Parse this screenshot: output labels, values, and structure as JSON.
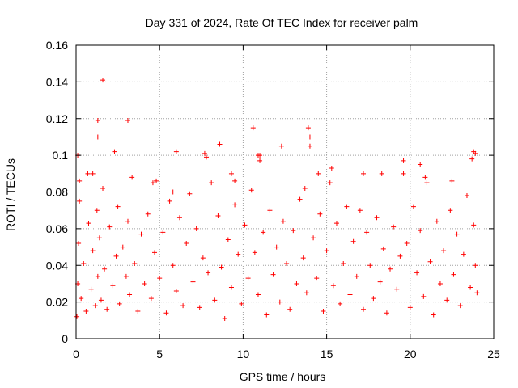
{
  "chart_data": {
    "type": "scatter",
    "title": "Day 331 of 2024, Rate Of TEC Index for receiver palm",
    "xlabel": "GPS time / hours",
    "ylabel": "ROTI / TECUs",
    "xlim": [
      0,
      25
    ],
    "ylim": [
      0,
      0.16
    ],
    "xticks": [
      0,
      5,
      10,
      15,
      20,
      25
    ],
    "xtick_labels": [
      "0",
      "5",
      "10",
      "15",
      "20",
      "25"
    ],
    "yticks": [
      0,
      0.02,
      0.04,
      0.06,
      0.08,
      0.1,
      0.12,
      0.14,
      0.16
    ],
    "ytick_labels": [
      "0",
      "0.02",
      "0.04",
      "0.06",
      "0.08",
      "0.1",
      "0.12",
      "0.14",
      "0.16"
    ],
    "grid": true,
    "marker": "+",
    "series_color": "#ff0000",
    "series": [
      {
        "name": "ROTI",
        "x": [
          0.05,
          0.1,
          0.15,
          0.2,
          0.3,
          0.45,
          0.6,
          0.75,
          0.9,
          1.0,
          1.15,
          1.25,
          1.3,
          1.4,
          1.5,
          1.6,
          1.7,
          1.85,
          2.0,
          2.2,
          2.4,
          2.5,
          2.6,
          2.8,
          3.0,
          3.1,
          3.2,
          3.35,
          3.5,
          3.7,
          3.9,
          4.1,
          4.3,
          4.5,
          4.7,
          4.8,
          5.0,
          5.2,
          5.4,
          5.6,
          5.8,
          6.0,
          6.2,
          6.4,
          6.6,
          6.8,
          7.0,
          7.2,
          7.4,
          7.6,
          7.8,
          7.9,
          8.1,
          8.3,
          8.5,
          8.7,
          8.9,
          9.1,
          9.3,
          9.5,
          9.7,
          9.9,
          10.1,
          10.3,
          10.5,
          10.7,
          10.9,
          11.0,
          11.2,
          11.4,
          11.6,
          11.8,
          12.0,
          12.2,
          12.4,
          12.6,
          12.8,
          13.0,
          13.2,
          13.4,
          13.6,
          13.8,
          14.0,
          14.2,
          14.4,
          14.6,
          14.8,
          15.0,
          15.2,
          15.4,
          15.6,
          15.8,
          16.0,
          16.2,
          16.4,
          16.6,
          16.8,
          17.0,
          17.2,
          17.4,
          17.6,
          17.8,
          18.0,
          18.2,
          18.4,
          18.6,
          18.8,
          19.0,
          19.2,
          19.4,
          19.6,
          19.8,
          20.0,
          20.2,
          20.4,
          20.6,
          20.8,
          21.0,
          21.2,
          21.4,
          21.6,
          21.8,
          22.0,
          22.2,
          22.4,
          22.6,
          22.8,
          23.0,
          23.2,
          23.4,
          23.6,
          23.7,
          23.8,
          23.9,
          24.0,
          1.6,
          3.1,
          1.3,
          1.3,
          2.3,
          7.7,
          8.6,
          10.9,
          12.3,
          13.9,
          14.0,
          19.6,
          20.6,
          23.8,
          23.9,
          0.1,
          0.2,
          0.7,
          1.0,
          4.6,
          5.8,
          6.0,
          9.3,
          9.5,
          10.6,
          11.0,
          13.7,
          14.5,
          15.3,
          17.2,
          18.3,
          20.9,
          22.5
        ],
        "y": [
          0.012,
          0.03,
          0.052,
          0.075,
          0.022,
          0.041,
          0.015,
          0.063,
          0.027,
          0.048,
          0.018,
          0.07,
          0.034,
          0.055,
          0.021,
          0.082,
          0.038,
          0.016,
          0.061,
          0.029,
          0.045,
          0.072,
          0.019,
          0.05,
          0.034,
          0.064,
          0.024,
          0.088,
          0.041,
          0.015,
          0.057,
          0.03,
          0.068,
          0.022,
          0.047,
          0.086,
          0.033,
          0.058,
          0.014,
          0.075,
          0.04,
          0.026,
          0.066,
          0.018,
          0.052,
          0.079,
          0.031,
          0.06,
          0.017,
          0.044,
          0.099,
          0.036,
          0.085,
          0.021,
          0.067,
          0.039,
          0.011,
          0.054,
          0.028,
          0.073,
          0.046,
          0.019,
          0.062,
          0.033,
          0.081,
          0.047,
          0.024,
          0.097,
          0.058,
          0.013,
          0.07,
          0.035,
          0.05,
          0.02,
          0.064,
          0.041,
          0.016,
          0.059,
          0.03,
          0.076,
          0.044,
          0.025,
          0.11,
          0.055,
          0.033,
          0.068,
          0.015,
          0.048,
          0.085,
          0.029,
          0.063,
          0.019,
          0.041,
          0.072,
          0.024,
          0.053,
          0.034,
          0.07,
          0.016,
          0.058,
          0.04,
          0.022,
          0.066,
          0.031,
          0.049,
          0.014,
          0.038,
          0.061,
          0.027,
          0.045,
          0.09,
          0.052,
          0.017,
          0.072,
          0.036,
          0.059,
          0.023,
          0.085,
          0.042,
          0.013,
          0.064,
          0.03,
          0.048,
          0.021,
          0.07,
          0.035,
          0.057,
          0.018,
          0.046,
          0.078,
          0.028,
          0.098,
          0.062,
          0.04,
          0.025,
          0.141,
          0.119,
          0.119,
          0.11,
          0.102,
          0.101,
          0.106,
          0.1,
          0.105,
          0.115,
          0.105,
          0.097,
          0.095,
          0.102,
          0.101,
          0.1,
          0.086,
          0.09,
          0.09,
          0.085,
          0.08,
          0.102,
          0.09,
          0.086,
          0.115,
          0.1,
          0.082,
          0.09,
          0.093,
          0.09,
          0.09,
          0.088,
          0.086
        ]
      }
    ]
  }
}
